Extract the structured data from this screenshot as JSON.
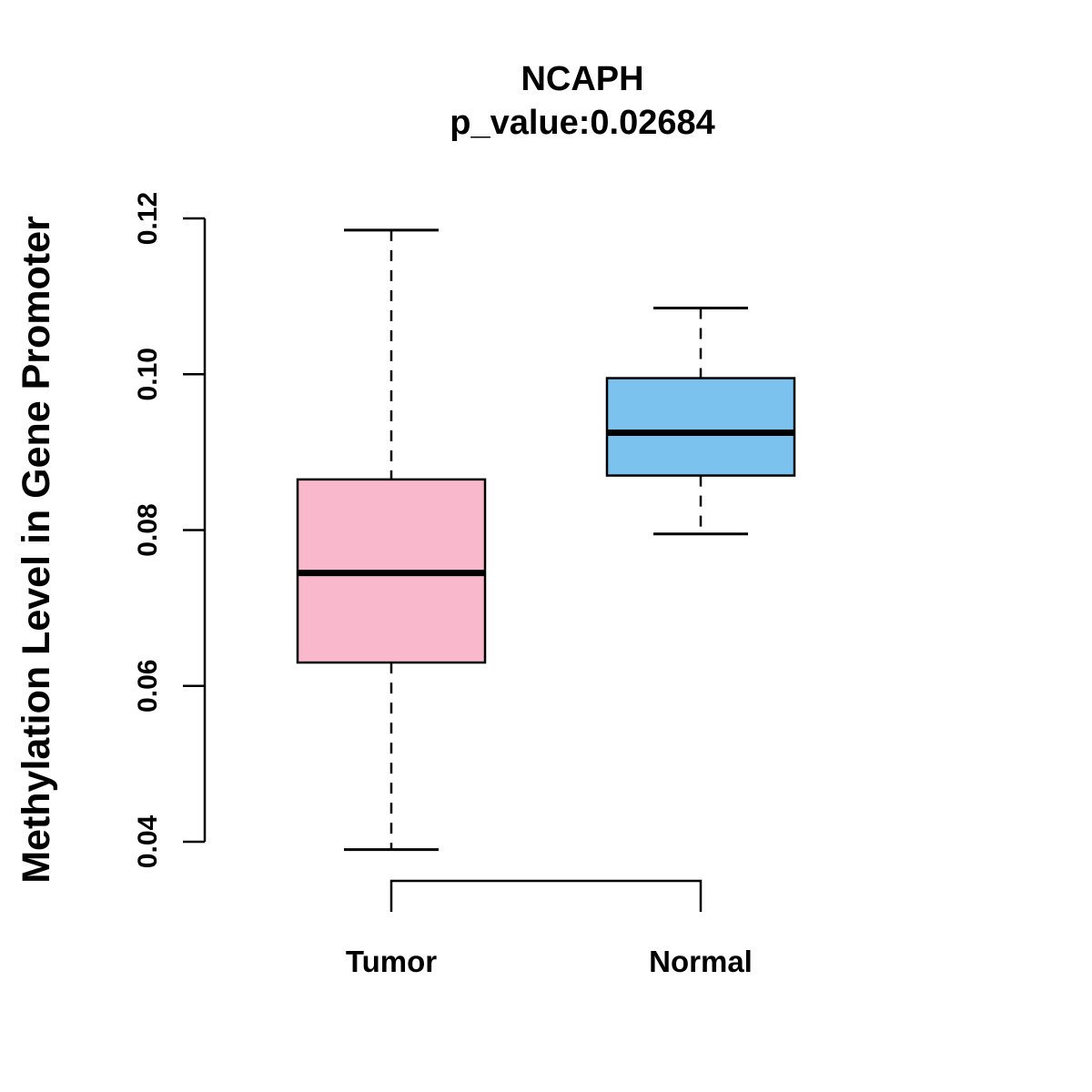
{
  "figure": {
    "title": "NCAPH",
    "subtitle": "p_value:0.02684",
    "ylabel": "Methylation Level in Gene Promoter"
  },
  "chart_data": {
    "type": "boxplot",
    "title": "NCAPH",
    "subtitle": "p_value:0.02684",
    "xlabel": "",
    "ylabel": "Methylation Level in Gene Promoter",
    "ylim": [
      0.04,
      0.12
    ],
    "yticks": [
      0.04,
      0.06,
      0.08,
      0.1,
      0.12
    ],
    "grid": false,
    "legend": "none",
    "categories": [
      "Tumor",
      "Normal"
    ],
    "series": [
      {
        "name": "Tumor",
        "color": "#F9B8CB",
        "whisker_low": 0.039,
        "q1": 0.063,
        "median": 0.0745,
        "q3": 0.0865,
        "whisker_high": 0.1185
      },
      {
        "name": "Normal",
        "color": "#7CC2EE",
        "whisker_low": 0.0795,
        "q1": 0.087,
        "median": 0.0925,
        "q3": 0.0995,
        "whisker_high": 0.1085
      }
    ],
    "comparison_bracket": {
      "between": [
        "Tumor",
        "Normal"
      ]
    }
  }
}
